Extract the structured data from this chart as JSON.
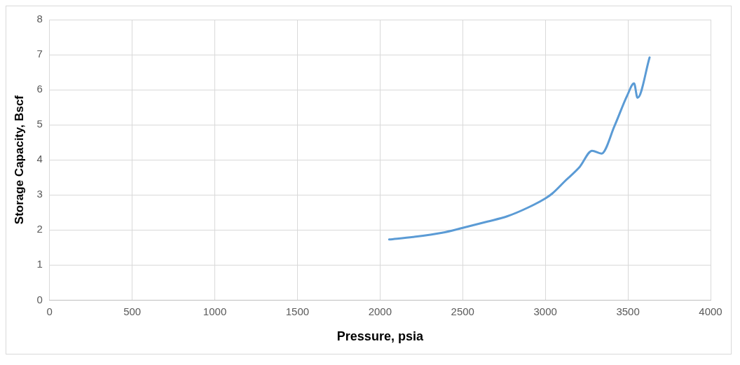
{
  "chart_data": {
    "type": "line",
    "xlabel": "Pressure, psia",
    "ylabel": "Storage Capacity, Bscf",
    "series": [
      {
        "color": "#5b9bd5",
        "x": [
          2055,
          2200,
          2375,
          2500,
          2650,
          2769,
          2900,
          3000,
          3042,
          3120,
          3208,
          3283,
          3340,
          3419,
          3495,
          3537,
          3558,
          3631
        ],
        "values": [
          1.73,
          1.8,
          1.92,
          2.06,
          2.24,
          2.39,
          2.65,
          2.9,
          3.04,
          3.4,
          3.8,
          4.26,
          4.18,
          4.97,
          5.83,
          6.18,
          5.77,
          6.92
        ]
      }
    ],
    "xlim": [
      0,
      4000
    ],
    "xticks": [
      0,
      500,
      1000,
      1500,
      2000,
      2500,
      3000,
      3500,
      4000
    ],
    "ylim": [
      0,
      8
    ],
    "yticks": [
      0,
      1,
      2,
      3,
      4,
      5,
      6,
      7,
      8
    ],
    "grid": true,
    "legend": false,
    "marker": "none",
    "line_style": "solid"
  }
}
